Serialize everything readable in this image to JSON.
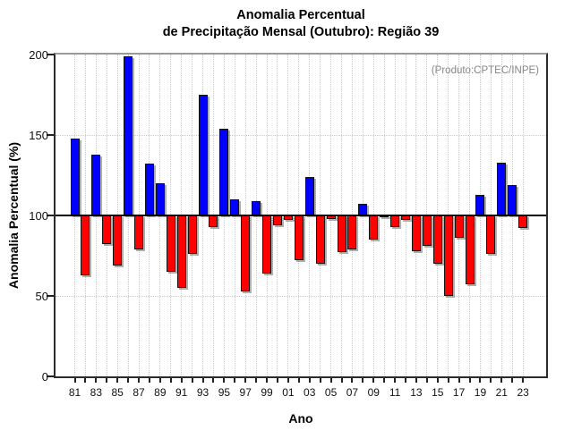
{
  "title": {
    "line1": "Anomalia Percentual",
    "line2": "de Precipitação Mensal (Outubro): Região 39"
  },
  "annotation": "(Produto:CPTEC/INPE)",
  "axes": {
    "y": {
      "label": "Anomalia Percentual (%)",
      "ticks": [
        "0",
        "50",
        "100",
        "150",
        "200"
      ],
      "range": [
        0,
        200
      ]
    },
    "x": {
      "label": "Ano",
      "tick_labels": [
        "81",
        "83",
        "85",
        "87",
        "89",
        "91",
        "93",
        "95",
        "97",
        "99",
        "01",
        "03",
        "05",
        "07",
        "09",
        "11",
        "13",
        "15",
        "17",
        "19",
        "21",
        "23"
      ]
    }
  },
  "colors": {
    "above_baseline": "#0000ff",
    "below_baseline": "#ff0000",
    "baseline": "#000000",
    "grid": "#c9c9c9",
    "annotation_text": "#878787"
  },
  "chart_data": {
    "type": "bar",
    "title": "Anomalia Percentual de Precipitação Mensal (Outubro): Região 39",
    "xlabel": "Ano",
    "ylabel": "Anomalia Percentual (%)",
    "ylim": [
      0,
      200
    ],
    "baseline": 100,
    "grid": "dotted",
    "x": [
      1981,
      1982,
      1983,
      1984,
      1985,
      1986,
      1987,
      1988,
      1989,
      1990,
      1991,
      1992,
      1993,
      1994,
      1995,
      1996,
      1997,
      1998,
      1999,
      2000,
      2001,
      2002,
      2003,
      2004,
      2005,
      2006,
      2007,
      2008,
      2009,
      2010,
      2011,
      2012,
      2013,
      2014,
      2015,
      2016,
      2017,
      2018,
      2019,
      2020,
      2021,
      2022,
      2023
    ],
    "values": [
      148,
      63,
      138,
      82,
      69,
      199,
      79,
      132,
      120,
      65,
      55,
      76,
      175,
      93,
      154,
      110,
      53,
      109,
      64,
      94,
      97,
      72,
      124,
      70,
      98,
      77,
      79,
      107,
      85,
      100,
      93,
      97,
      78,
      81,
      70,
      50,
      86,
      57,
      113,
      76,
      133,
      119,
      92
    ]
  }
}
